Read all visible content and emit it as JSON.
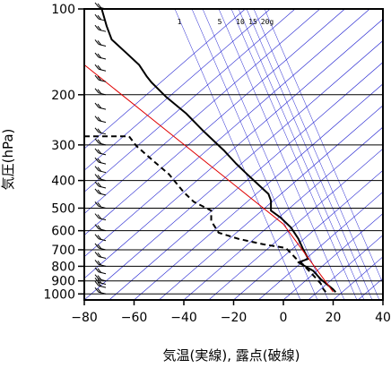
{
  "chart_data": {
    "type": "line",
    "title": "",
    "xlabel": "気温(実線), 露点(破線)",
    "ylabel": "気圧(hPa)",
    "xlim": [
      -80,
      40
    ],
    "ylim": [
      1050,
      100
    ],
    "yscale": "log",
    "xticks": [
      -80,
      -60,
      -40,
      -20,
      0,
      20,
      40
    ],
    "yticks": [
      100,
      200,
      300,
      400,
      500,
      600,
      700,
      800,
      900,
      1000
    ],
    "mixing_ratio_labels": [
      "1",
      "5",
      "10",
      "15",
      "20g"
    ],
    "colors": {
      "temperature": "#000000",
      "dewpoint": "#000000",
      "reference": "#e00000",
      "isotherm": "#2020d0",
      "grid": "#000000"
    },
    "series": [
      {
        "key": "temperature",
        "style": "solid",
        "points": [
          [
            -73,
            100
          ],
          [
            -71,
            115
          ],
          [
            -69,
            128
          ],
          [
            -63,
            143
          ],
          [
            -58,
            157
          ],
          [
            -55,
            172
          ],
          [
            -53,
            181
          ],
          [
            -47,
            204
          ],
          [
            -39,
            233
          ],
          [
            -32,
            269
          ],
          [
            -24,
            313
          ],
          [
            -19,
            349
          ],
          [
            -15,
            377
          ],
          [
            -10,
            414
          ],
          [
            -6,
            446
          ],
          [
            -5,
            471
          ],
          [
            -5,
            510
          ],
          [
            -1,
            541
          ],
          [
            3,
            584
          ],
          [
            6,
            640
          ],
          [
            8,
            699
          ],
          [
            10,
            753
          ],
          [
            6,
            775
          ],
          [
            12,
            830
          ],
          [
            15,
            888
          ],
          [
            20,
            964
          ],
          [
            21,
            985
          ]
        ]
      },
      {
        "key": "dewpoint",
        "style": "dashed",
        "points": [
          [
            -80,
            280
          ],
          [
            -62,
            280
          ],
          [
            -59,
            303
          ],
          [
            -53,
            337
          ],
          [
            -46,
            380
          ],
          [
            -40,
            440
          ],
          [
            -36,
            475
          ],
          [
            -29,
            510
          ],
          [
            -29,
            555
          ],
          [
            -26,
            610
          ],
          [
            -18,
            641
          ],
          [
            -8,
            670
          ],
          [
            1,
            690
          ],
          [
            5,
            750
          ],
          [
            8,
            790
          ],
          [
            12,
            860
          ],
          [
            15,
            920
          ],
          [
            16,
            960
          ],
          [
            17,
            985
          ]
        ]
      },
      {
        "key": "reference",
        "style": "solid",
        "points": [
          [
            -80,
            157
          ],
          [
            0,
            569
          ],
          [
            20,
            984
          ]
        ]
      }
    ],
    "isotherms_celsius": [
      -150,
      -140,
      -130,
      -120,
      -110,
      -100,
      -90,
      -80,
      -70,
      -60,
      -50,
      -40,
      -30,
      -20,
      -10,
      0,
      10,
      20,
      30,
      40,
      50,
      60
    ],
    "mixing_ratios_g_per_kg": [
      1,
      2,
      3,
      5,
      8,
      10,
      12,
      15,
      20
    ],
    "wind_barbs_hpa": [
      100,
      110,
      120,
      135,
      150,
      165,
      180,
      200,
      225,
      250,
      275,
      300,
      325,
      350,
      375,
      400,
      425,
      450,
      500,
      550,
      600,
      650,
      700,
      750,
      800,
      850,
      900,
      925,
      950,
      1000
    ]
  }
}
